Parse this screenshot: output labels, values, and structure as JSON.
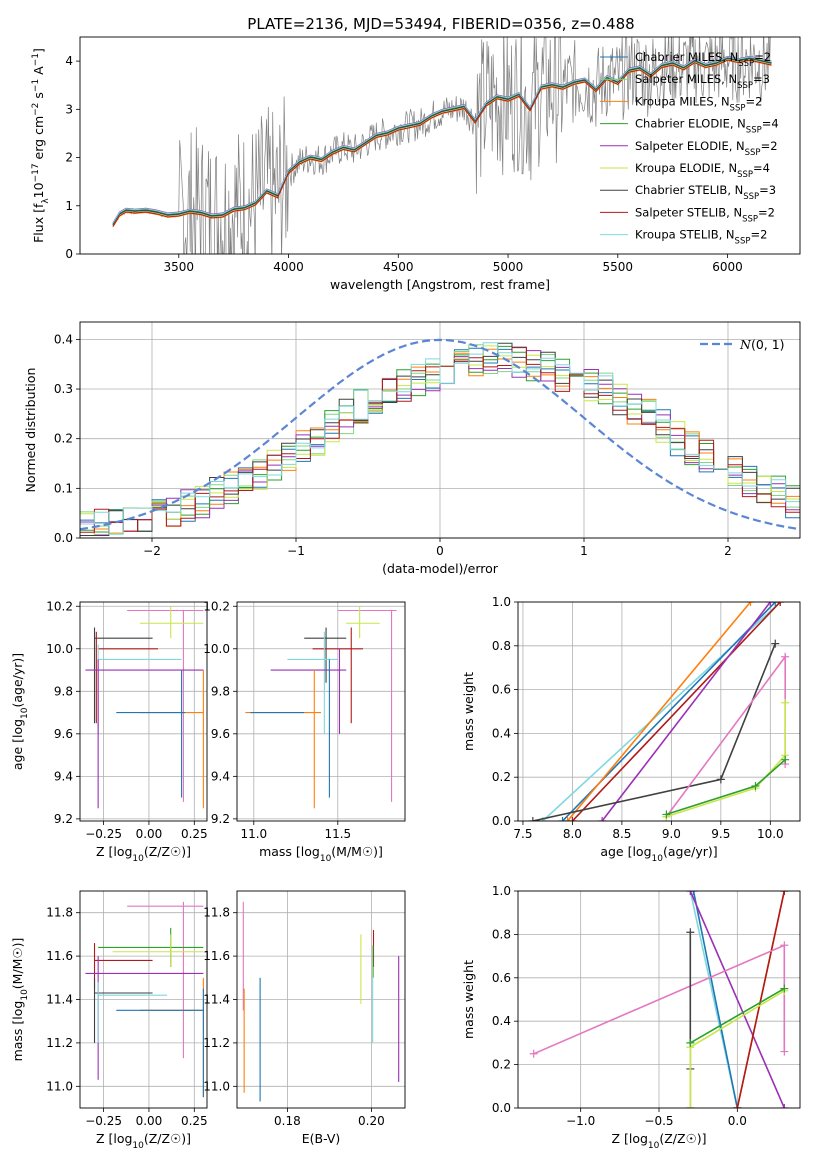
{
  "figure": {
    "title": "PLATE=2136, MJD=53494, FIBERID=0356, z=0.488"
  },
  "colors": {
    "gray_data": "#808080",
    "chabrier_miles": "#1f77b4",
    "salpeter_miles": "#7fd87f",
    "kroupa_miles": "#ff7f0e",
    "chabrier_elodie": "#2ca02c",
    "salpeter_elodie": "#9b30b5",
    "kroupa_elodie": "#c8e64a",
    "chabrier_stelib": "#404040",
    "salpeter_stelib": "#b01a1a",
    "kroupa_stelib": "#7fd8e0",
    "pink": "#e377c2",
    "gauss": "#5b86d4"
  },
  "chart_data": [
    {
      "id": "spectrum",
      "type": "line",
      "xlabel": "wavelength [Angstrom, rest frame]",
      "ylabel": "Flux [f",
      "xlim": [
        3050,
        6330
      ],
      "ylim": [
        0,
        4.5
      ],
      "xticks": [
        3500,
        4000,
        4500,
        5000,
        5500,
        6000
      ],
      "yticks": [
        0,
        1,
        2,
        3,
        4
      ],
      "model_x": [
        3200,
        3230,
        3260,
        3300,
        3350,
        3400,
        3450,
        3500,
        3550,
        3600,
        3650,
        3700,
        3750,
        3800,
        3850,
        3900,
        3950,
        4000,
        4050,
        4100,
        4150,
        4200,
        4250,
        4300,
        4350,
        4400,
        4450,
        4500,
        4550,
        4600,
        4650,
        4700,
        4750,
        4800,
        4850,
        4900,
        4950,
        5000,
        5050,
        5100,
        5150,
        5200,
        5250,
        5300,
        5350,
        5400,
        5450,
        5500,
        5550,
        5600,
        5650,
        5700,
        5750,
        5800,
        5850,
        5900,
        5950,
        6000,
        6050,
        6100,
        6150,
        6200
      ],
      "model_y": [
        0.6,
        0.82,
        0.9,
        0.88,
        0.9,
        0.86,
        0.8,
        0.82,
        0.88,
        0.85,
        0.78,
        0.8,
        0.92,
        0.95,
        1.05,
        1.3,
        1.2,
        1.7,
        1.9,
        2.0,
        1.95,
        2.1,
        2.2,
        2.15,
        2.3,
        2.45,
        2.5,
        2.6,
        2.65,
        2.7,
        2.85,
        2.95,
        3.0,
        3.05,
        2.75,
        3.1,
        3.25,
        3.2,
        3.3,
        3.0,
        3.45,
        3.5,
        3.45,
        3.55,
        3.6,
        3.4,
        3.65,
        3.55,
        3.8,
        3.85,
        3.7,
        3.9,
        3.95,
        3.85,
        4.0,
        3.9,
        3.95,
        4.05,
        4.0,
        4.05,
        4.0,
        3.95
      ],
      "legend": [
        {
          "label": "Chabrier MILES, N",
          "sub": "SSP",
          "tail": "=2",
          "color": "#1f77b4"
        },
        {
          "label": "Salpeter MILES, N",
          "sub": "SSP",
          "tail": "=3",
          "color": "#7fd87f"
        },
        {
          "label": "Kroupa MILES, N",
          "sub": "SSP",
          "tail": "=2",
          "color": "#ff7f0e"
        },
        {
          "label": "Chabrier ELODIE, N",
          "sub": "SSP",
          "tail": "=4",
          "color": "#2ca02c"
        },
        {
          "label": "Salpeter ELODIE, N",
          "sub": "SSP",
          "tail": "=2",
          "color": "#9b30b5"
        },
        {
          "label": "Kroupa ELODIE, N",
          "sub": "SSP",
          "tail": "=4",
          "color": "#c8e64a"
        },
        {
          "label": "Chabrier STELIB, N",
          "sub": "SSP",
          "tail": "=3",
          "color": "#404040"
        },
        {
          "label": "Salpeter STELIB, N",
          "sub": "SSP",
          "tail": "=2",
          "color": "#b01a1a"
        },
        {
          "label": "Kroupa STELIB, N",
          "sub": "SSP",
          "tail": "=2",
          "color": "#7fd8e0"
        }
      ]
    },
    {
      "id": "residuals",
      "type": "bar",
      "xlabel": "(data-model)/error",
      "ylabel": "Normed distribution",
      "xlim": [
        -2.5,
        2.5
      ],
      "ylim": [
        0,
        0.435
      ],
      "xticks": [
        -2,
        -1,
        0,
        1,
        2
      ],
      "yticks": [
        0.0,
        0.1,
        0.2,
        0.3,
        0.4
      ],
      "legend_label": "(0, 1)",
      "bin_edges_start": -2.5,
      "bin_width": 0.1,
      "base_hist": [
        0.02,
        0.025,
        0.03,
        0.035,
        0.04,
        0.05,
        0.055,
        0.065,
        0.075,
        0.09,
        0.1,
        0.115,
        0.13,
        0.15,
        0.165,
        0.185,
        0.2,
        0.225,
        0.245,
        0.265,
        0.28,
        0.3,
        0.31,
        0.32,
        0.33,
        0.34,
        0.35,
        0.355,
        0.36,
        0.36,
        0.355,
        0.35,
        0.34,
        0.33,
        0.32,
        0.31,
        0.3,
        0.28,
        0.26,
        0.245,
        0.225,
        0.2,
        0.18,
        0.165,
        0.15,
        0.13,
        0.115,
        0.1,
        0.09,
        0.075
      ]
    },
    {
      "id": "age_vs_Z",
      "type": "scatter",
      "xlabel": "Z [log",
      "ylabel": "age  [log",
      "xlim": [
        -0.38,
        0.32
      ],
      "ylim": [
        9.19,
        10.22
      ],
      "xticks": [
        -0.25,
        0.0,
        0.25
      ],
      "yticks": [
        9.2,
        9.4,
        9.6,
        9.8,
        10.0,
        10.2
      ],
      "segments": [
        {
          "c": "#e377c2",
          "h": [
            -0.12,
            0.3,
            10.18
          ],
          "v": [
            0.19,
            9.28,
            10.18
          ]
        },
        {
          "c": "#c8e64a",
          "h": [
            -0.05,
            0.3,
            10.12
          ],
          "v": [
            0.12,
            10.05,
            10.2
          ]
        },
        {
          "c": "#404040",
          "h": [
            -0.3,
            0.02,
            10.05
          ],
          "v": [
            -0.3,
            9.65,
            10.1
          ]
        },
        {
          "c": "#b01a1a",
          "h": [
            -0.28,
            0.05,
            10.0
          ],
          "v": [
            -0.29,
            9.65,
            10.08
          ]
        },
        {
          "c": "#7fd8e0",
          "h": [
            -0.28,
            0.18,
            9.95
          ],
          "v": [
            -0.28,
            9.6,
            10.02
          ]
        },
        {
          "c": "#9b30b5",
          "h": [
            -0.35,
            0.3,
            9.9
          ],
          "v": [
            -0.28,
            9.25,
            9.95
          ]
        },
        {
          "c": "#ff7f0e",
          "h": [
            -0.05,
            0.3,
            9.7
          ],
          "v": [
            0.3,
            9.25,
            9.9
          ]
        },
        {
          "c": "#1f77b4",
          "h": [
            -0.18,
            0.2,
            9.7
          ],
          "v": [
            0.18,
            9.3,
            9.9
          ]
        }
      ]
    },
    {
      "id": "age_vs_mass",
      "type": "scatter",
      "xlabel": "mass [log",
      "ylabel": "",
      "xlim": [
        10.9,
        11.9
      ],
      "ylim": [
        9.19,
        10.22
      ],
      "xticks": [
        11.0,
        11.5
      ],
      "yticks": [
        9.2,
        9.4,
        9.6,
        9.8,
        10.0,
        10.2
      ],
      "segments": [
        {
          "c": "#e377c2",
          "h": [
            11.5,
            11.85,
            10.18
          ],
          "v": [
            11.82,
            9.28,
            10.18
          ]
        },
        {
          "c": "#c8e64a",
          "h": [
            11.55,
            11.75,
            10.12
          ],
          "v": [
            11.63,
            10.05,
            10.2
          ]
        },
        {
          "c": "#404040",
          "h": [
            11.3,
            11.55,
            10.05
          ],
          "v": [
            11.43,
            9.84,
            10.1
          ]
        },
        {
          "c": "#b01a1a",
          "h": [
            11.35,
            11.65,
            10.0
          ],
          "v": [
            11.58,
            9.65,
            10.1
          ]
        },
        {
          "c": "#7fd8e0",
          "h": [
            11.2,
            11.5,
            9.95
          ],
          "v": [
            11.42,
            9.6,
            10.08
          ]
        },
        {
          "c": "#9b30b5",
          "h": [
            11.1,
            11.55,
            9.9
          ],
          "v": [
            11.51,
            9.6,
            10.0
          ]
        },
        {
          "c": "#ff7f0e",
          "h": [
            10.95,
            11.4,
            9.7
          ],
          "v": [
            11.36,
            9.25,
            9.9
          ]
        },
        {
          "c": "#1f77b4",
          "h": [
            10.98,
            11.3,
            9.7
          ],
          "v": [
            11.45,
            9.3,
            9.95
          ]
        }
      ]
    },
    {
      "id": "weight_vs_age",
      "type": "line",
      "xlabel": "age  [log",
      "ylabel": "mass weight",
      "xlim": [
        7.45,
        10.3
      ],
      "ylim": [
        0,
        1
      ],
      "xticks": [
        7.5,
        8.0,
        8.5,
        9.0,
        9.5,
        10.0
      ],
      "yticks": [
        0.0,
        0.2,
        0.4,
        0.6,
        0.8,
        1.0
      ],
      "series": [
        {
          "c": "#7fd8e0",
          "x": [
            7.7,
            10.1
          ],
          "y": [
            0.0,
            1.0
          ]
        },
        {
          "c": "#1f77b4",
          "x": [
            7.9,
            10.05
          ],
          "y": [
            0.0,
            1.0
          ]
        },
        {
          "c": "#ff7f0e",
          "x": [
            7.95,
            9.8
          ],
          "y": [
            0.0,
            1.0
          ]
        },
        {
          "c": "#b01a1a",
          "x": [
            8.0,
            10.1
          ],
          "y": [
            0.0,
            1.0
          ]
        },
        {
          "c": "#9b30b5",
          "x": [
            8.3,
            10.0
          ],
          "y": [
            0.0,
            1.0
          ]
        },
        {
          "c": "#404040",
          "x": [
            7.6,
            9.5,
            10.05
          ],
          "y": [
            0.0,
            0.19,
            0.81
          ]
        },
        {
          "c": "#e377c2",
          "x": [
            8.95,
            10.15,
            10.15
          ],
          "y": [
            0.02,
            0.75,
            0.26
          ]
        },
        {
          "c": "#c8e64a",
          "x": [
            8.95,
            9.85,
            10.15,
            10.15
          ],
          "y": [
            0.02,
            0.15,
            0.3,
            0.54
          ]
        },
        {
          "c": "#2ca02c",
          "x": [
            8.95,
            9.85,
            10.15
          ],
          "y": [
            0.03,
            0.16,
            0.28
          ]
        }
      ]
    },
    {
      "id": "mass_vs_Z",
      "type": "scatter",
      "xlabel": "Z [log",
      "ylabel": "mass [log",
      "xlim": [
        -0.38,
        0.32
      ],
      "ylim": [
        10.9,
        11.9
      ],
      "xticks": [
        -0.25,
        0.0,
        0.25
      ],
      "yticks": [
        11.0,
        11.2,
        11.4,
        11.6,
        11.8
      ],
      "segments": [
        {
          "c": "#e377c2",
          "h": [
            -0.12,
            0.3,
            11.83
          ],
          "v": [
            0.19,
            11.13,
            11.85
          ]
        },
        {
          "c": "#2ca02c",
          "h": [
            -0.28,
            0.3,
            11.64
          ],
          "v": [
            0.12,
            11.55,
            11.73
          ]
        },
        {
          "c": "#c8e64a",
          "h": [
            -0.2,
            0.3,
            11.62
          ],
          "v": [
            0.12,
            11.55,
            11.7
          ]
        },
        {
          "c": "#b01a1a",
          "h": [
            -0.3,
            0.02,
            11.58
          ],
          "v": [
            -0.3,
            11.45,
            11.66
          ]
        },
        {
          "c": "#9b30b5",
          "h": [
            -0.35,
            0.3,
            11.52
          ],
          "v": [
            -0.28,
            11.03,
            11.6
          ]
        },
        {
          "c": "#404040",
          "h": [
            -0.3,
            0.02,
            11.43
          ],
          "v": [
            -0.3,
            11.2,
            11.5
          ]
        },
        {
          "c": "#7fd8e0",
          "h": [
            -0.28,
            0.1,
            11.42
          ],
          "v": [
            -0.28,
            11.2,
            11.48
          ]
        },
        {
          "c": "#ff7f0e",
          "h": [
            -0.05,
            0.3,
            11.35
          ],
          "v": [
            0.3,
            10.95,
            11.5
          ]
        },
        {
          "c": "#1f77b4",
          "h": [
            -0.18,
            0.3,
            11.35
          ],
          "v": [
            0.3,
            10.95,
            11.45
          ]
        }
      ]
    },
    {
      "id": "mass_vs_ebv",
      "type": "scatter",
      "xlabel": "E(B-V)",
      "ylabel": "",
      "xlim": [
        0.168,
        0.208
      ],
      "ylim": [
        10.9,
        11.9
      ],
      "xticks": [
        0.18,
        0.2
      ],
      "yticks": [
        11.0,
        11.2,
        11.4,
        11.6,
        11.8
      ],
      "vlines": [
        {
          "c": "#e377c2",
          "x": 0.1695,
          "y0": 11.35,
          "y1": 11.85
        },
        {
          "c": "#ff7f0e",
          "x": 0.1697,
          "y0": 10.97,
          "y1": 11.45
        },
        {
          "c": "#1f77b4",
          "x": 0.1735,
          "y0": 10.93,
          "y1": 11.5
        },
        {
          "c": "#c8e64a",
          "x": 0.1975,
          "y0": 11.38,
          "y1": 11.7
        },
        {
          "c": "#b01a1a",
          "x": 0.2005,
          "y0": 11.55,
          "y1": 11.72
        },
        {
          "c": "#7fd8e0",
          "x": 0.2003,
          "y0": 11.2,
          "y1": 11.5
        },
        {
          "c": "#2ca02c",
          "x": 0.2004,
          "y0": 11.5,
          "y1": 11.65
        },
        {
          "c": "#9b30b5",
          "x": 0.2065,
          "y0": 11.02,
          "y1": 11.6
        }
      ]
    },
    {
      "id": "weight_vs_Z",
      "type": "line",
      "xlabel": "Z [log",
      "ylabel": "mass weight",
      "xlim": [
        -1.4,
        0.4
      ],
      "ylim": [
        0,
        1
      ],
      "xticks": [
        -1.0,
        -0.5,
        0.0
      ],
      "yticks": [
        0.0,
        0.2,
        0.4,
        0.6,
        0.8,
        1.0
      ],
      "series": [
        {
          "c": "#7fd8e0",
          "x": [
            -0.3,
            0.0
          ],
          "y": [
            1.0,
            0.0
          ]
        },
        {
          "c": "#1f77b4",
          "x": [
            -0.28,
            0.0
          ],
          "y": [
            1.0,
            0.0
          ]
        },
        {
          "c": "#9b30b5",
          "x": [
            -0.3,
            0.3
          ],
          "y": [
            1.0,
            0.0
          ]
        },
        {
          "c": "#ff7f0e",
          "x": [
            0.0,
            0.3
          ],
          "y": [
            0.0,
            1.0
          ]
        },
        {
          "c": "#b01a1a",
          "x": [
            0.0,
            0.3
          ],
          "y": [
            0.0,
            1.0
          ]
        },
        {
          "c": "#e377c2",
          "x": [
            -1.3,
            0.3,
            0.3
          ],
          "y": [
            0.25,
            0.75,
            0.26
          ]
        },
        {
          "c": "#404040",
          "x": [
            -0.3,
            -0.3,
            -0.3
          ],
          "y": [
            0.0,
            0.81,
            0.18
          ]
        },
        {
          "c": "#c8e64a",
          "x": [
            -0.3,
            -0.3,
            0.3
          ],
          "y": [
            0.0,
            0.28,
            0.54
          ]
        },
        {
          "c": "#2ca02c",
          "x": [
            -0.3,
            0.3
          ],
          "y": [
            0.3,
            0.55
          ]
        }
      ]
    }
  ]
}
